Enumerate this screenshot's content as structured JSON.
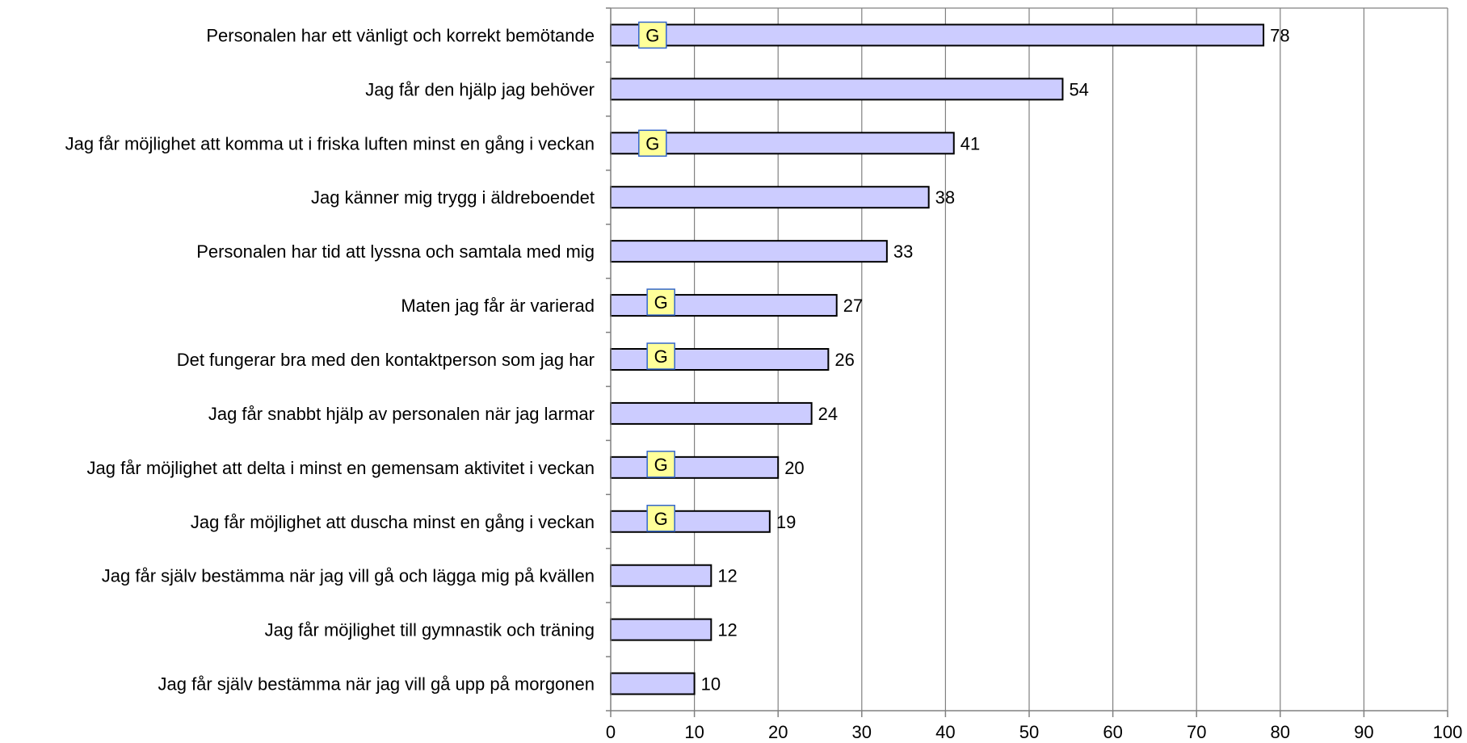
{
  "chart_data": {
    "type": "bar",
    "orientation": "horizontal",
    "categories": [
      "Personalen har ett vänligt och korrekt bemötande",
      "Jag får den hjälp jag behöver",
      "Jag får möjlighet att komma ut i friska luften minst en gång i veckan",
      "Jag känner mig trygg i äldreboendet",
      "Personalen har tid att lyssna och samtala med mig",
      "Maten jag får är varierad",
      "Det fungerar bra med den kontaktperson som jag har",
      "Jag får snabbt hjälp av personalen när jag larmar",
      "Jag får möjlighet att delta i minst en gemensam aktivitet i veckan",
      "Jag får möjlighet att duscha minst en gång i veckan",
      "Jag får själv bestämma när jag vill gå och lägga mig på kvällen",
      "Jag får möjlighet till gymnastik och träning",
      "Jag får själv bestämma när jag vill gå upp på morgonen"
    ],
    "values": [
      78,
      54,
      41,
      38,
      33,
      27,
      26,
      24,
      20,
      19,
      12,
      12,
      10
    ],
    "markers": [
      {
        "index": 0,
        "label": "G",
        "x": 5
      },
      {
        "index": 2,
        "label": "G",
        "x": 5
      },
      {
        "index": 5,
        "label": "G",
        "x": 6
      },
      {
        "index": 6,
        "label": "G",
        "x": 6
      },
      {
        "index": 8,
        "label": "G",
        "x": 6
      },
      {
        "index": 9,
        "label": "G",
        "x": 6
      }
    ],
    "xlim": [
      0,
      100
    ],
    "xticks": [
      0,
      10,
      20,
      30,
      40,
      50,
      60,
      70,
      80,
      90,
      100
    ],
    "grid": true,
    "legend": "none",
    "title": "",
    "xlabel": "",
    "ylabel": ""
  },
  "colors": {
    "bar_fill": "#ccccff",
    "bar_stroke": "#000000",
    "marker_fill": "#ffff99",
    "marker_stroke": "#3366cc",
    "grid": "#808080",
    "axis": "#808080"
  }
}
